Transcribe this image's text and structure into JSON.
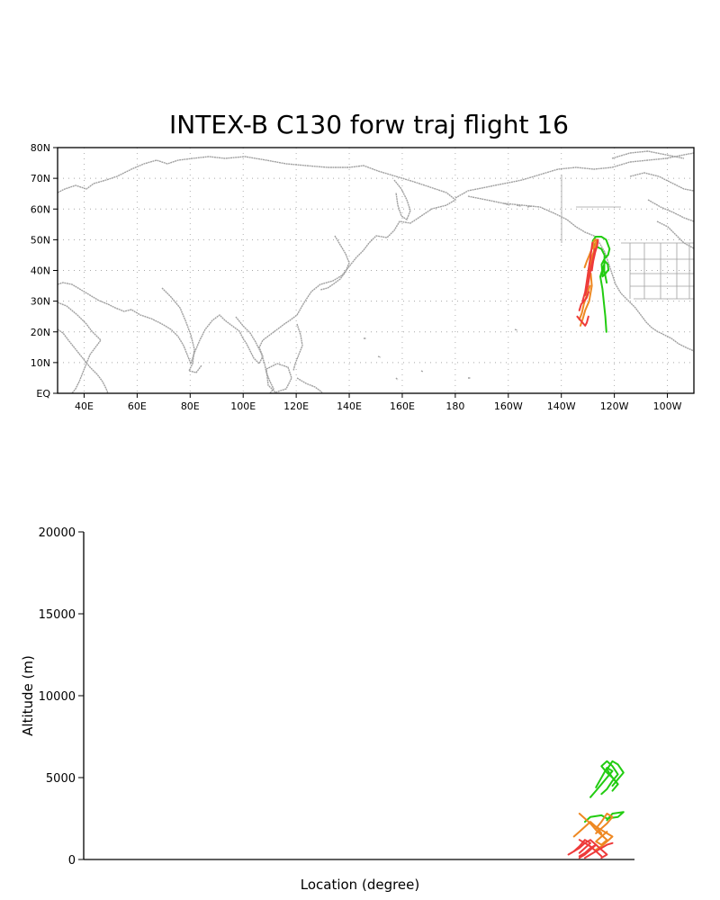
{
  "colors": {
    "land_outline": "#a0a0a0",
    "axis": "#000000",
    "green_trajectory": "#22cc11",
    "orange_trajectory": "#ee8822",
    "red_trajectory": "#ee3a3a"
  },
  "chart_data": [
    {
      "type": "line",
      "subtype": "map",
      "title": "INTEX-B C130 forw traj flight 16",
      "x_ticks": [
        "40E",
        "60E",
        "80E",
        "100E",
        "120E",
        "140E",
        "160E",
        "180",
        "160W",
        "140W",
        "120W",
        "100W"
      ],
      "y_ticks": [
        "EQ",
        "10N",
        "20N",
        "30N",
        "40N",
        "50N",
        "60N",
        "70N",
        "80N"
      ],
      "xlim_deg_east": [
        30,
        270
      ],
      "ylim_deg_north": [
        0,
        80
      ],
      "grid": true,
      "series": [
        {
          "color": "green",
          "x_lon": [
            -123,
            -123.4,
            -124,
            -124.5,
            -125.3,
            -124.6,
            -124.8,
            -123.6,
            -122.4,
            -121.8,
            -123.1,
            -124.9,
            -127.1,
            -128.2,
            -127.3,
            -124.9,
            -123.7,
            -123.8,
            -122.9
          ],
          "y_lat": [
            20,
            25,
            30,
            34,
            38,
            40,
            42,
            44,
            45,
            47,
            50,
            51,
            51,
            49.5,
            48,
            47,
            45,
            40,
            36
          ]
        },
        {
          "color": "green",
          "x_lon": [
            -122.2,
            -122.5,
            -123.5,
            -124.2,
            -124.5,
            -123.3,
            -122.5
          ],
          "y_lat": [
            40,
            42,
            43,
            41,
            38,
            39,
            40
          ]
        },
        {
          "color": "orange",
          "x_lon": [
            -130,
            -129.5,
            -128.6,
            -127.4,
            -126.5,
            -127.2,
            -128.2,
            -127.8
          ],
          "y_lat": [
            38,
            41,
            44,
            47,
            49,
            50,
            49,
            47
          ]
        },
        {
          "color": "orange",
          "x_lon": [
            -131.2,
            -130.4,
            -129.4,
            -128.1,
            -127.5
          ],
          "y_lat": [
            41,
            43,
            45,
            48,
            50
          ]
        },
        {
          "color": "orange",
          "x_lon": [
            -132.8,
            -132,
            -131,
            -129.5,
            -128.5,
            -128.9
          ],
          "y_lat": [
            22,
            24,
            27,
            30,
            35,
            39
          ]
        },
        {
          "color": "orange",
          "x_lon": [
            -130,
            -129.3,
            -128.3,
            -127.3,
            -126.7
          ],
          "y_lat": [
            36,
            40,
            44,
            48,
            50
          ]
        },
        {
          "color": "orange",
          "x_lon": [
            -133.2,
            -132.3,
            -131.5,
            -130.4,
            -129.2
          ],
          "y_lat": [
            24,
            26,
            29,
            32,
            35
          ]
        },
        {
          "color": "red",
          "x_lon": [
            -134,
            -133,
            -132,
            -131,
            -130.4,
            -129.8
          ],
          "y_lat": [
            25,
            24,
            23,
            22,
            23,
            25
          ]
        },
        {
          "color": "red",
          "x_lon": [
            -132,
            -131,
            -130.3,
            -129.6,
            -128.9,
            -128.3
          ],
          "y_lat": [
            30,
            33,
            37,
            41,
            45,
            49
          ]
        },
        {
          "color": "red",
          "x_lon": [
            -131,
            -130,
            -129.4,
            -128.8,
            -128,
            -127.3
          ],
          "y_lat": [
            32,
            35,
            38,
            41,
            44,
            47
          ]
        },
        {
          "color": "red",
          "x_lon": [
            -128.5,
            -128,
            -127.2,
            -126.5,
            -126.2
          ],
          "y_lat": [
            40,
            43,
            46,
            48,
            50
          ]
        },
        {
          "color": "red",
          "x_lon": [
            -133.2,
            -132.5,
            -131.5,
            -130.5,
            -129.7
          ],
          "y_lat": [
            27,
            29,
            30,
            31,
            33
          ]
        }
      ]
    },
    {
      "type": "line",
      "ylabel": "Altitude (m)",
      "xlabel": "Location (degree)",
      "y_ticks": [
        "0",
        "5000",
        "10000",
        "15000",
        "20000"
      ],
      "ylim": [
        0,
        20000
      ],
      "x_position_range": [
        0,
        100
      ],
      "series": [
        {
          "color": "green",
          "x": [
            94,
            95,
            96,
            97,
            96,
            95,
            94,
            95,
            96,
            97,
            96
          ],
          "y": [
            4000,
            4300,
            4800,
            5200,
            5700,
            6000,
            5700,
            5300,
            5000,
            4600,
            4200
          ]
        },
        {
          "color": "green",
          "x": [
            92,
            93,
            94,
            95,
            96,
            95,
            94,
            93
          ],
          "y": [
            3800,
            4200,
            4600,
            5000,
            5400,
            5600,
            5000,
            4400
          ]
        },
        {
          "color": "green",
          "x": [
            96,
            97,
            98,
            97,
            96,
            95,
            96,
            97
          ],
          "y": [
            4500,
            4900,
            5300,
            5800,
            6000,
            5500,
            5000,
            4600
          ]
        },
        {
          "color": "green",
          "x": [
            91,
            92,
            94,
            95,
            97,
            98,
            96,
            95
          ],
          "y": [
            2300,
            2600,
            2700,
            2500,
            2600,
            2900,
            2800,
            2400
          ]
        },
        {
          "color": "orange",
          "x": [
            90,
            91,
            92,
            93,
            94,
            95,
            94,
            93,
            94,
            95
          ],
          "y": [
            2800,
            2500,
            2200,
            1800,
            1500,
            1200,
            900,
            1100,
            1400,
            1700
          ]
        },
        {
          "color": "orange",
          "x": [
            92,
            93,
            94,
            95,
            96,
            95,
            94,
            93
          ],
          "y": [
            2200,
            2000,
            1800,
            1600,
            1400,
            1100,
            800,
            600
          ]
        },
        {
          "color": "orange",
          "x": [
            93,
            94,
            95,
            96,
            95,
            94,
            93
          ],
          "y": [
            1600,
            1900,
            2200,
            2600,
            2800,
            2300,
            1900
          ]
        },
        {
          "color": "orange",
          "x": [
            89,
            90,
            91,
            92,
            93,
            94
          ],
          "y": [
            1400,
            1700,
            2000,
            2300,
            2000,
            1600
          ]
        },
        {
          "color": "red",
          "x": [
            89,
            90,
            91,
            92,
            93,
            92,
            91,
            90
          ],
          "y": [
            500,
            700,
            1000,
            1200,
            900,
            600,
            300,
            100
          ]
        },
        {
          "color": "red",
          "x": [
            90,
            91,
            92,
            93,
            94,
            95,
            94
          ],
          "y": [
            200,
            400,
            700,
            900,
            600,
            300,
            100
          ]
        },
        {
          "color": "red",
          "x": [
            88,
            89,
            90,
            91,
            92,
            91,
            90
          ],
          "y": [
            300,
            500,
            800,
            1200,
            1000,
            700,
            400
          ]
        },
        {
          "color": "red",
          "x": [
            91,
            92,
            93,
            94,
            95,
            96
          ],
          "y": [
            100,
            300,
            500,
            700,
            900,
            1000
          ]
        },
        {
          "color": "red",
          "x": [
            90,
            91,
            92,
            93,
            94
          ],
          "y": [
            1200,
            1000,
            800,
            500,
            200
          ]
        }
      ]
    }
  ]
}
